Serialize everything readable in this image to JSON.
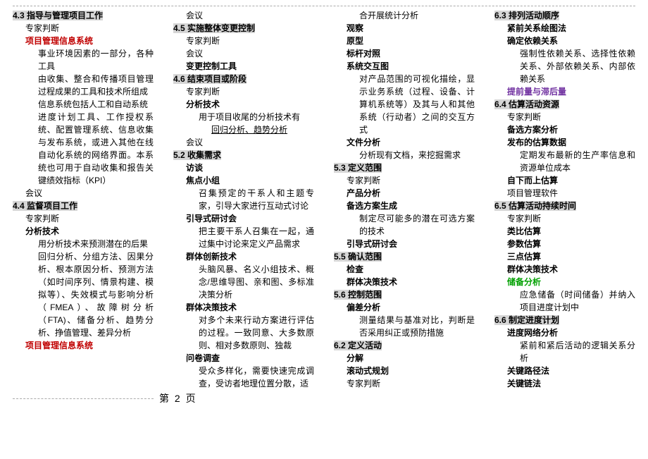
{
  "text_color_default": "#000000",
  "text_color_red": "#c00000",
  "text_color_green": "#00a000",
  "text_color_purple": "#7030a0",
  "highlight_bg": "#d6d6d6",
  "font_size": 12,
  "page_label": "第 2 页",
  "cols": [
    [
      {
        "t": "4.3 指导与管理项目工作",
        "ind": 0,
        "hl": true,
        "bold": true
      },
      {
        "t": "专家判断",
        "ind": 1
      },
      {
        "t": "项目管理信息系统",
        "ind": 1,
        "red": true
      },
      {
        "t": "事业环境因素的一部分，各种工具",
        "ind": 2,
        "justify": true
      },
      {
        "t": "由收集、整合和传播项目管理过程成果的工具和技术所组成",
        "ind": 2,
        "justify": true
      },
      {
        "t": "信息系统包括人工和自动系统",
        "ind": 2,
        "justify": true
      },
      {
        "t": "进度计划工具、工作授权系统、配置管理系统、信息收集与发布系统，或进入其他在线自动化系统的网络界面。本系统也可用于自动收集和报告关键绩效指标（KPI）",
        "ind": 2,
        "justify": true
      },
      {
        "t": "会议",
        "ind": 1
      },
      {
        "t": "4.4 监督项目工作",
        "ind": 0,
        "hl": true,
        "bold": true
      },
      {
        "t": "专家判断",
        "ind": 1
      },
      {
        "t": "分析技术",
        "ind": 1,
        "bold": true
      },
      {
        "t": "用分析技术来预测潜在的后果",
        "ind": 2,
        "justify": true
      },
      {
        "t": "回归分析、分组方法、因果分析、根本原因分析、预测方法（如时间序列、情景构建、模拟等）、失效模式与影响分析（FMEA）、故障树分析（FTA)、储备分析、趋势分析、挣值管理、差异分析",
        "ind": 2,
        "justify": true
      },
      {
        "t": "项目管理信息系统",
        "ind": 1,
        "red": true
      }
    ],
    [
      {
        "t": "会议",
        "ind": 1
      },
      {
        "t": "4.5 实施整体变更控制",
        "ind": 0,
        "hl": true,
        "bold": true
      },
      {
        "t": "专家判断",
        "ind": 1
      },
      {
        "t": "会议",
        "ind": 1
      },
      {
        "t": "变更控制工具",
        "ind": 1,
        "bold": true
      },
      {
        "t": "4.6 结束项目或阶段",
        "ind": 0,
        "hl": true,
        "bold": true
      },
      {
        "t": "专家判断",
        "ind": 1
      },
      {
        "t": "分析技术",
        "ind": 1,
        "bold": true
      },
      {
        "t": "用于项目收尾的分析技术有",
        "ind": 2
      },
      {
        "t": "回归分析、趋势分析",
        "ind": 3,
        "underline": true
      },
      {
        "t": "会议",
        "ind": 1
      },
      {
        "t": "5.2 收集需求",
        "ind": 0,
        "hl": true,
        "bold": true
      },
      {
        "t": "访谈",
        "ind": 1,
        "bold": true
      },
      {
        "t": "焦点小组",
        "ind": 1,
        "bold": true
      },
      {
        "t": "召集预定的干系人和主题专家，引导大家进行互动式讨论",
        "ind": 2,
        "justify": true
      },
      {
        "t": "引导式研讨会",
        "ind": 1,
        "bold": true
      },
      {
        "t": "把主要干系人召集在一起，通过集中讨论来定义产品需求",
        "ind": 2,
        "justify": true
      },
      {
        "t": "群体创新技术",
        "ind": 1,
        "bold": true
      },
      {
        "t": "头脑风暴、名义小组技术、概念/思维导图、亲和图、多标准决策分析",
        "ind": 2,
        "justify": true
      },
      {
        "t": "群体决策技术",
        "ind": 1,
        "bold": true
      },
      {
        "t": "对多个未来行动方案进行评估的过程。一致同意、大多数原则、相对多数原则、独裁",
        "ind": 2,
        "justify": true
      },
      {
        "t": "问卷调查",
        "ind": 1,
        "bold": true
      },
      {
        "t": "受众多样化，需要快速完成调查，受访者地理位置分散，适",
        "ind": 2,
        "justify": true
      }
    ],
    [
      {
        "t": "合开展统计分析",
        "ind": 2
      },
      {
        "t": "观察",
        "ind": 1,
        "bold": true
      },
      {
        "t": "原型",
        "ind": 1,
        "bold": true
      },
      {
        "t": "标杆对照",
        "ind": 1,
        "bold": true
      },
      {
        "t": "系统交互图",
        "ind": 1,
        "bold": true
      },
      {
        "t": "对产品范围的可视化描绘，显示业务系统（过程、设备、计算机系统等）及其与人和其他系统（行动者）之间的交互方式",
        "ind": 2,
        "justify": true
      },
      {
        "t": "文件分析",
        "ind": 1,
        "bold": true
      },
      {
        "t": "分析现有文档，来挖掘需求",
        "ind": 2
      },
      {
        "t": "5.3 定义范围",
        "ind": 0,
        "hl": true,
        "bold": true
      },
      {
        "t": "专家判断",
        "ind": 1
      },
      {
        "t": "产品分析",
        "ind": 1,
        "bold": true
      },
      {
        "t": "备选方案生成",
        "ind": 1,
        "bold": true
      },
      {
        "t": "制定尽可能多的潜在可选方案的技术",
        "ind": 2,
        "justify": true
      },
      {
        "t": "引导式研讨会",
        "ind": 1,
        "bold": true
      },
      {
        "t": "5.5 确认范围",
        "ind": 0,
        "hl": true,
        "bold": true
      },
      {
        "t": "检查",
        "ind": 1,
        "bold": true
      },
      {
        "t": "群体决策技术",
        "ind": 1,
        "bold": true
      },
      {
        "t": "5.6 控制范围",
        "ind": 0,
        "hl": true,
        "bold": true
      },
      {
        "t": "偏差分析",
        "ind": 1,
        "bold": true
      },
      {
        "t": "测量结果与基准对比，判断是否采用纠正或预防措施",
        "ind": 2,
        "justify": true
      },
      {
        "t": "6.2 定义活动",
        "ind": 0,
        "hl": true,
        "bold": true
      },
      {
        "t": "分解",
        "ind": 1,
        "bold": true
      },
      {
        "t": "滚动式规划",
        "ind": 1,
        "bold": true
      },
      {
        "t": "专家判断",
        "ind": 1
      }
    ],
    [
      {
        "t": "6.3 排列活动顺序",
        "ind": 0,
        "hl": true,
        "bold": true
      },
      {
        "t": "紧前关系绘图法",
        "ind": 1,
        "bold": true
      },
      {
        "t": "确定依赖关系",
        "ind": 1,
        "bold": true
      },
      {
        "t": "强制性依赖关系、选择性依赖关系、外部依赖关系、内部依赖关系",
        "ind": 2,
        "justify": true
      },
      {
        "t": "提前量与滞后量",
        "ind": 1,
        "purple": true
      },
      {
        "t": "6.4 估算活动资源",
        "ind": 0,
        "hl": true,
        "bold": true
      },
      {
        "t": "专家判断",
        "ind": 1
      },
      {
        "t": "备选方案分析",
        "ind": 1,
        "bold": true
      },
      {
        "t": "发布的估算数据",
        "ind": 1,
        "bold": true
      },
      {
        "t": "定期发布最新的生产率信息和资源单位成本",
        "ind": 2,
        "justify": true
      },
      {
        "t": "自下而上估算",
        "ind": 1,
        "bold": true
      },
      {
        "t": "项目管理软件",
        "ind": 1
      },
      {
        "t": "6.5 估算活动持续时间",
        "ind": 0,
        "hl": true,
        "bold": true
      },
      {
        "t": "专家判断",
        "ind": 1
      },
      {
        "t": "类比估算",
        "ind": 1,
        "bold": true
      },
      {
        "t": "参数估算",
        "ind": 1,
        "bold": true
      },
      {
        "t": "三点估算",
        "ind": 1,
        "bold": true
      },
      {
        "t": "群体决策技术",
        "ind": 1,
        "bold": true
      },
      {
        "t": "储备分析",
        "ind": 1,
        "green": true
      },
      {
        "t": "应急储备（时间储备）并纳入项目进度计划中",
        "ind": 2,
        "justify": true
      },
      {
        "t": "6.6 制定进度计划",
        "ind": 0,
        "hl": true,
        "bold": true
      },
      {
        "t": "进度网络分析",
        "ind": 1,
        "bold": true
      },
      {
        "t": "紧前和紧后活动的逻辑关系分析",
        "ind": 2,
        "justify": true
      },
      {
        "t": "关键路径法",
        "ind": 1,
        "bold": true
      },
      {
        "t": "关键链法",
        "ind": 1,
        "bold": true
      }
    ]
  ]
}
